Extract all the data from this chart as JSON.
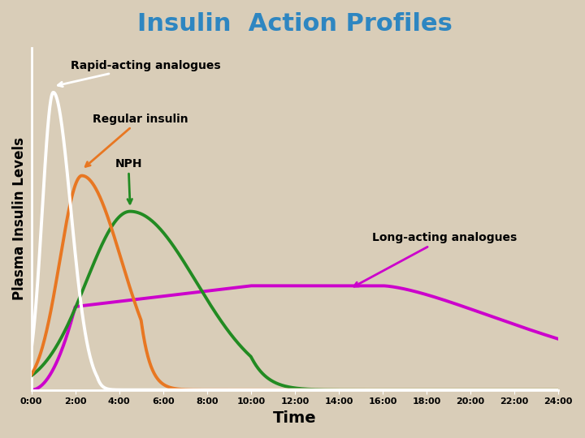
{
  "title": "Insulin  Action Profiles",
  "title_color": "#2E86C1",
  "title_fontsize": 22,
  "xlabel": "Time",
  "ylabel": "Plasma Insulin Levels",
  "bg_color": "#D9CDB8",
  "axis_color": "white",
  "tick_color": "white",
  "label_color": "black",
  "time_labels": [
    "0:00",
    "2:00",
    "4:00",
    "6:00",
    "8:00",
    "10:00",
    "12:00",
    "14:00",
    "16:00",
    "18:00",
    "20:00",
    "22:00",
    "24:00"
  ],
  "rapid_color": "white",
  "regular_color": "#E87722",
  "nph_color": "#228B22",
  "longacting_color": "#CC00CC",
  "annotation_rapid": "Rapid-acting analogues",
  "annotation_regular": "Regular insulin",
  "annotation_nph": "NPH",
  "annotation_longacting": "Long-acting analogues"
}
